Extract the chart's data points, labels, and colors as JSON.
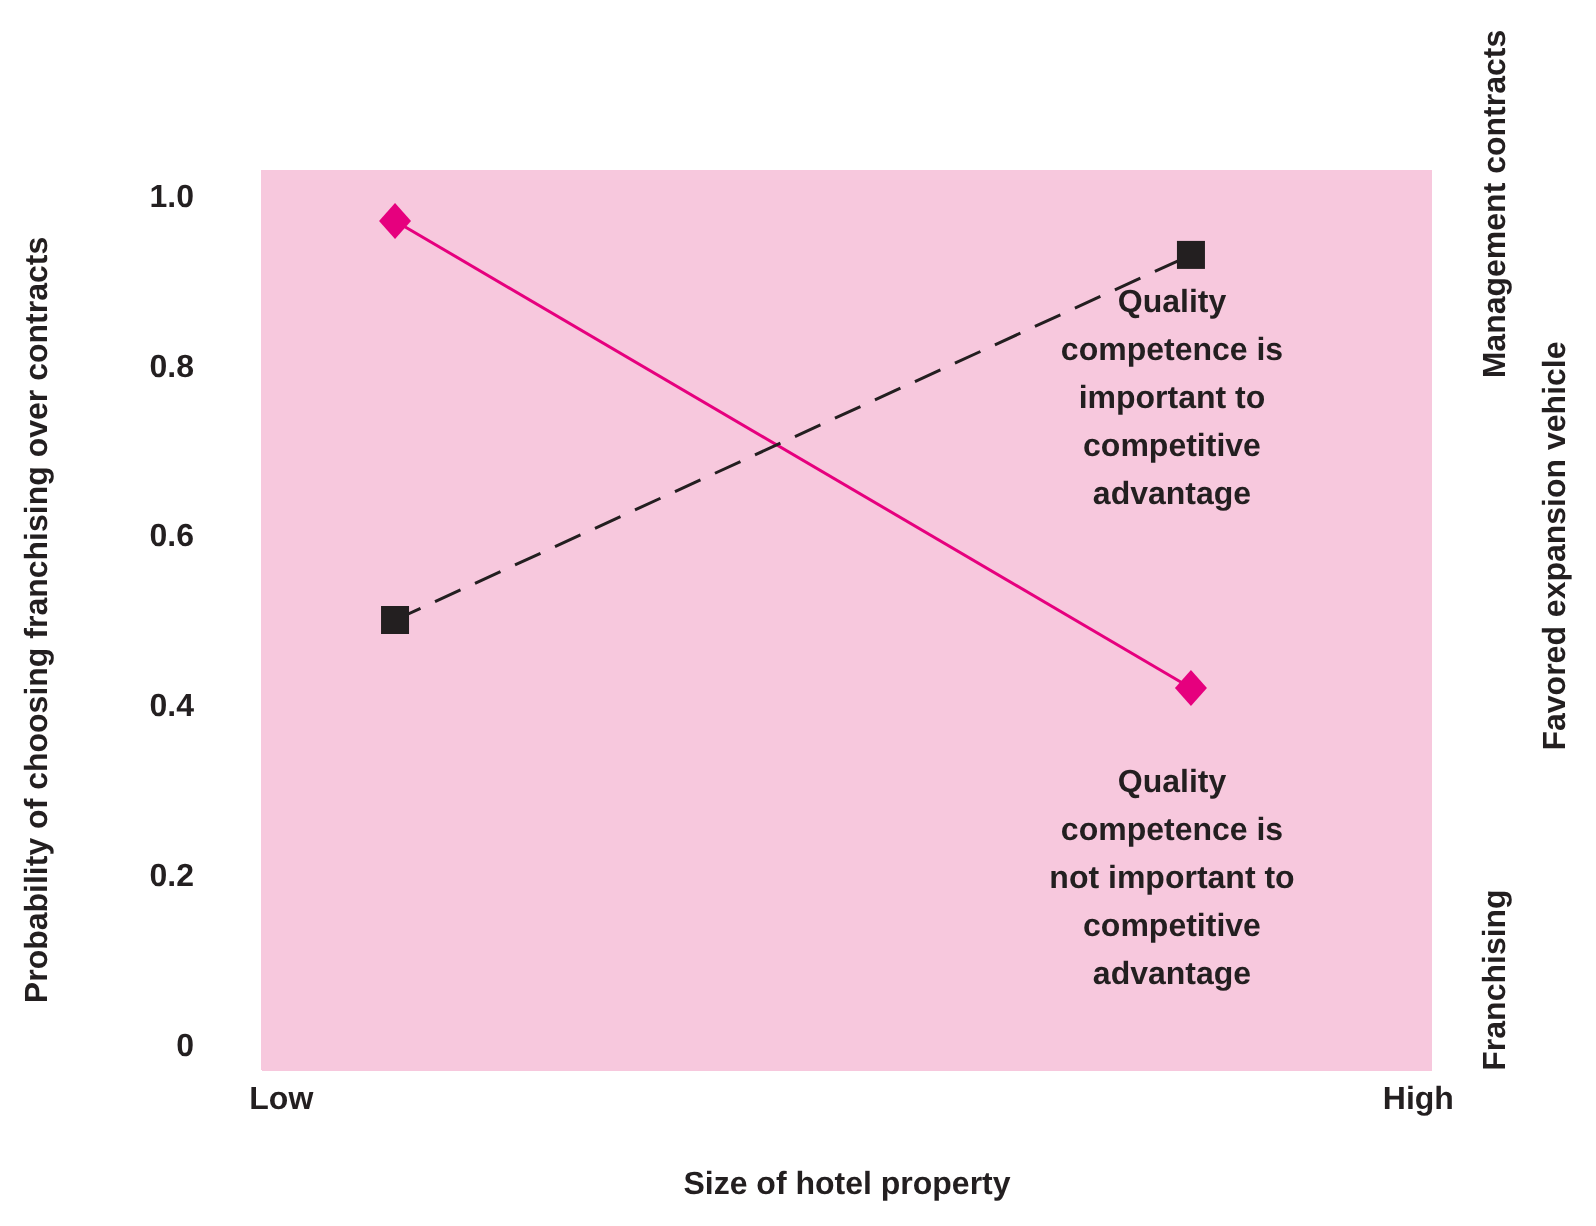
{
  "chart_data": {
    "type": "line",
    "xlabel": "Size of hotel property",
    "ylabel": "Probability of choosing franchising over contracts",
    "y2label": "Favored expansion vehicle",
    "categories": [
      "Low",
      null,
      null,
      null,
      null,
      null,
      null,
      null,
      null,
      null,
      "High"
    ],
    "ylim": [
      -0.03,
      1.03
    ],
    "yticks": [
      {
        "value": 0,
        "label": "0"
      },
      0.2,
      0.4,
      0.6,
      0.8,
      {
        "value": 1,
        "label": "1.0"
      }
    ],
    "series": [
      {
        "color": "#e6007e",
        "values": [
          null,
          0.97,
          null,
          null,
          null,
          null,
          null,
          null,
          0.42,
          null,
          null
        ],
        "marker": "diamond",
        "line_style": "solid"
      },
      {
        "color": "#231f20",
        "values": [
          null,
          0.5,
          null,
          null,
          null,
          null,
          null,
          null,
          0.93,
          null,
          null
        ],
        "marker": "square",
        "line_style": "dashed"
      }
    ],
    "annotations": [
      "Quality competence is important to competitive advantage",
      "Quality competence is not important to competitive advantage",
      "Management contracts",
      "Franchising"
    ]
  }
}
